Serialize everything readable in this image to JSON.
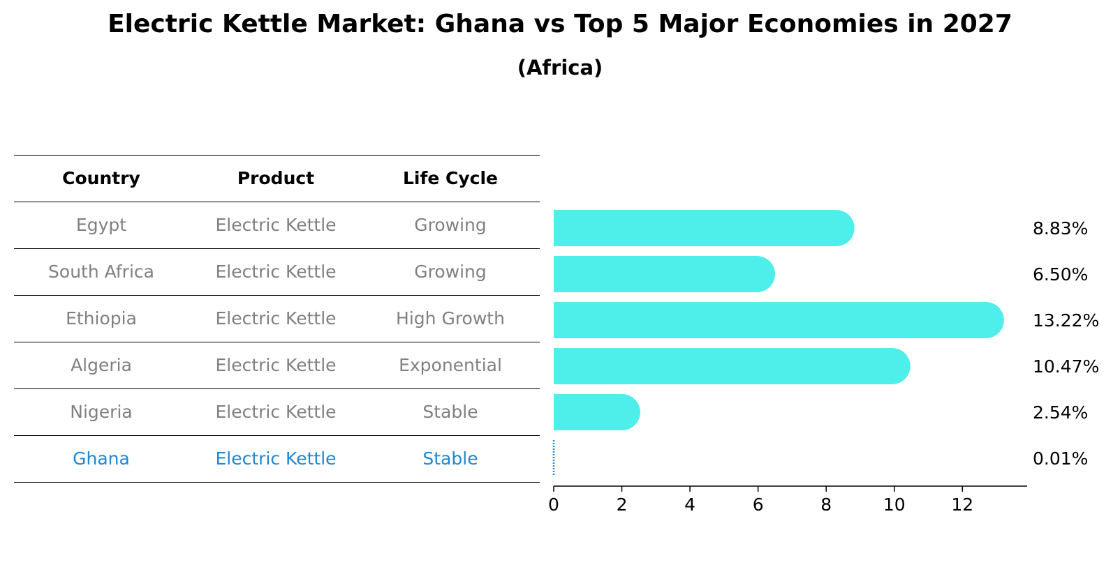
{
  "chart_data": {
    "type": "bar",
    "orientation": "horizontal",
    "title": "Electric Kettle Market: Ghana vs Top 5 Major Economies in 2027",
    "subtitle": "(Africa)",
    "table": {
      "columns": [
        "Country",
        "Product",
        "Life Cycle"
      ],
      "rows": [
        {
          "country": "Egypt",
          "product": "Electric Kettle",
          "life_cycle": "Growing"
        },
        {
          "country": "South Africa",
          "product": "Electric Kettle",
          "life_cycle": "Growing"
        },
        {
          "country": "Ethiopia",
          "product": "Electric Kettle",
          "life_cycle": "High Growth"
        },
        {
          "country": "Algeria",
          "product": "Electric Kettle",
          "life_cycle": "Exponential"
        },
        {
          "country": "Nigeria",
          "product": "Electric Kettle",
          "life_cycle": "Stable"
        },
        {
          "country": "Ghana",
          "product": "Electric Kettle",
          "life_cycle": "Stable"
        }
      ]
    },
    "categories": [
      "Egypt",
      "South Africa",
      "Ethiopia",
      "Algeria",
      "Nigeria",
      "Ghana"
    ],
    "values": [
      8.83,
      6.5,
      13.22,
      10.47,
      2.54,
      0.01
    ],
    "value_labels": [
      "8.83%",
      "6.50%",
      "13.22%",
      "10.47%",
      "2.54%",
      "0.01%"
    ],
    "highlight": "Ghana",
    "xlim": [
      0,
      13.9
    ],
    "xticks": [
      "0",
      "2",
      "4",
      "6",
      "8",
      "10",
      "12"
    ],
    "grid": false,
    "colors": {
      "bar": "#4eeeea",
      "highlight_text": "#1f87d4",
      "muted_text": "#808080"
    }
  }
}
